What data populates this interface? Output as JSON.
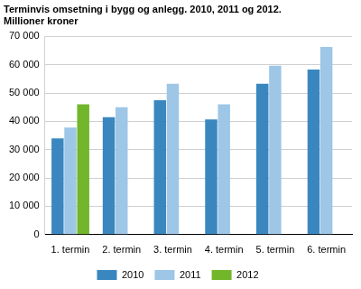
{
  "chart_data": {
    "type": "bar",
    "title": "Terminvis omsetning i bygg og anlegg. 2010, 2011 og 2012.",
    "subtitle": "Millioner kroner",
    "categories": [
      "1. termin",
      "2. termin",
      "3. termin",
      "4. termin",
      "5. termin",
      "6. termin"
    ],
    "series": [
      {
        "name": "2010",
        "color": "#3a87c0",
        "values": [
          34000,
          41500,
          47500,
          40700,
          53300,
          58300
        ]
      },
      {
        "name": "2011",
        "color": "#9ec6e6",
        "values": [
          37800,
          45000,
          53300,
          46000,
          59700,
          66300
        ]
      },
      {
        "name": "2012",
        "color": "#72b62b",
        "values": [
          46000,
          null,
          null,
          null,
          null,
          null
        ]
      }
    ],
    "ylim": [
      0,
      70000
    ],
    "yticks": [
      0,
      {
        "value": 10000,
        "label": "10 000"
      },
      {
        "value": 20000,
        "label": "20 000"
      },
      {
        "value": 30000,
        "label": "30 000"
      },
      {
        "value": 40000,
        "label": "40 000"
      },
      {
        "value": 50000,
        "label": "50 000"
      },
      {
        "value": 60000,
        "label": "60 000"
      },
      {
        "value": 70000,
        "label": "70 000"
      }
    ],
    "grid": true,
    "legend": "bottom"
  }
}
